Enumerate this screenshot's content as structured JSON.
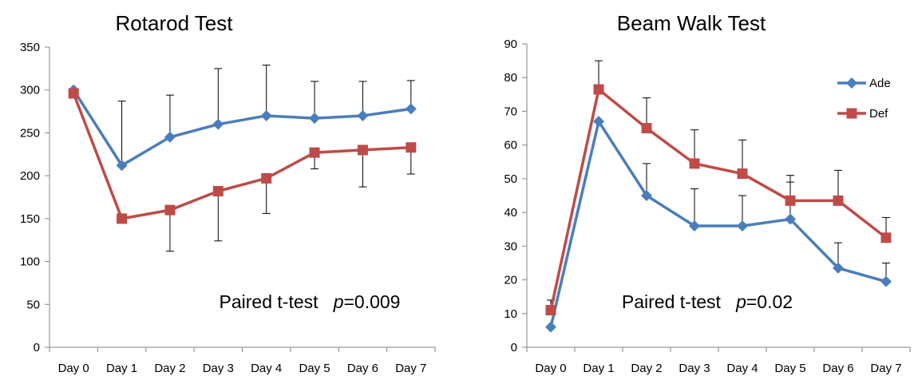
{
  "chart_data": [
    {
      "type": "line",
      "title": "Rotarod Test",
      "xlabel": "",
      "ylabel": "",
      "categories": [
        "Day 0",
        "Day 1",
        "Day 2",
        "Day 3",
        "Day 4",
        "Day 5",
        "Day 6",
        "Day 7"
      ],
      "ylim": [
        0,
        350
      ],
      "yticks": [
        0,
        50,
        100,
        150,
        200,
        250,
        300,
        350
      ],
      "grid": false,
      "legend": "none",
      "annotation": {
        "prefix": "Paired t-test",
        "italic": "p",
        "value": "=0.009"
      },
      "series": [
        {
          "name": "Ade",
          "color": "#4a7ebb",
          "marker": "diamond",
          "values": [
            300,
            212,
            245,
            260,
            270,
            267,
            270,
            278
          ],
          "error_plus": [
            null,
            75,
            49,
            65,
            59,
            43,
            40,
            33
          ],
          "error_minus": [
            null,
            null,
            null,
            null,
            null,
            null,
            null,
            null
          ]
        },
        {
          "name": "Def",
          "color": "#be4b48",
          "marker": "square",
          "values": [
            296,
            150,
            160,
            182,
            197,
            227,
            230,
            233
          ],
          "error_plus": [
            null,
            null,
            null,
            null,
            null,
            null,
            null,
            null
          ],
          "error_minus": [
            null,
            null,
            48,
            58,
            41,
            19,
            43,
            31
          ]
        }
      ]
    },
    {
      "type": "line",
      "title": "Beam Walk Test",
      "xlabel": "",
      "ylabel": "",
      "categories": [
        "Day 0",
        "Day 1",
        "Day 2",
        "Day 3",
        "Day 4",
        "Day 5",
        "Day 6",
        "Day 7"
      ],
      "ylim": [
        0,
        90
      ],
      "yticks": [
        0,
        10,
        20,
        30,
        40,
        50,
        60,
        70,
        80,
        90
      ],
      "grid": false,
      "legend": "top-right",
      "annotation": {
        "prefix": "Paired t-test",
        "italic": "p",
        "value": "=0.02"
      },
      "series": [
        {
          "name": "Ade",
          "color": "#4a7ebb",
          "marker": "diamond",
          "values": [
            6,
            67,
            45,
            36,
            36,
            38,
            23.5,
            19.5
          ],
          "error_plus": [
            null,
            null,
            9.5,
            11,
            9,
            11,
            7.5,
            5.5
          ],
          "error_minus": [
            null,
            null,
            null,
            null,
            null,
            null,
            null,
            null
          ]
        },
        {
          "name": "Def",
          "color": "#be4b48",
          "marker": "square",
          "values": [
            11,
            76.5,
            65,
            54.5,
            51.5,
            43.5,
            43.5,
            32.5
          ],
          "error_plus": [
            3,
            8.5,
            9,
            10,
            10,
            7.5,
            9,
            6
          ],
          "error_minus": [
            null,
            null,
            null,
            null,
            null,
            null,
            null,
            null
          ]
        }
      ]
    }
  ]
}
